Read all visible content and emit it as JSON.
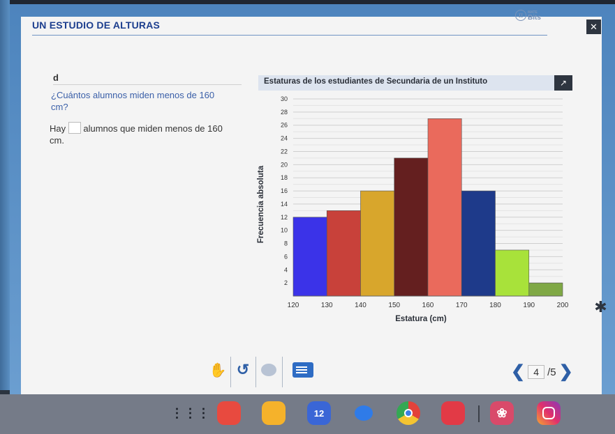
{
  "header": {
    "title": "UN ESTUDIO DE ALTURAS",
    "logo_small": "MATE",
    "logo_big": "Bits",
    "logo_symbol": "π"
  },
  "question": {
    "letter": "d",
    "text": "¿Cuántos alumnos miden menos de 160 cm?",
    "answer_prefix": "Hay",
    "answer_suffix": "alumnos que miden menos de 160 cm."
  },
  "chart_data": {
    "type": "bar",
    "title": "Estaturas de los estudiantes de Secundaria de un Instituto",
    "xlabel": "Estatura (cm)",
    "ylabel": "Frecuencia absoluta",
    "bins": [
      [
        120,
        130
      ],
      [
        130,
        140
      ],
      [
        140,
        150
      ],
      [
        150,
        160
      ],
      [
        160,
        170
      ],
      [
        170,
        180
      ],
      [
        180,
        190
      ],
      [
        190,
        200
      ]
    ],
    "values": [
      12,
      13,
      16,
      21,
      27,
      16,
      7,
      2
    ],
    "colors": [
      "#3b33e8",
      "#c8413a",
      "#d8a62c",
      "#641f1f",
      "#ea6a5c",
      "#1e3a8a",
      "#a8e23a",
      "#7fa845"
    ],
    "xticks": [
      120,
      130,
      140,
      150,
      160,
      170,
      180,
      190,
      200
    ],
    "yticks": [
      2,
      4,
      6,
      8,
      10,
      12,
      14,
      16,
      18,
      20,
      22,
      24,
      26,
      28,
      30
    ],
    "ylim": [
      0,
      30
    ],
    "grid": true
  },
  "toolbar": {
    "hand": "✋",
    "undo": "↺",
    "close": "✕",
    "expand": "↗",
    "star": "✱"
  },
  "pager": {
    "current": "4",
    "total": "/5",
    "prev": "❮",
    "next": "❯"
  },
  "taskbar": {
    "grid": "⋮⋮⋮",
    "calendar": "12",
    "flower": "❀"
  }
}
